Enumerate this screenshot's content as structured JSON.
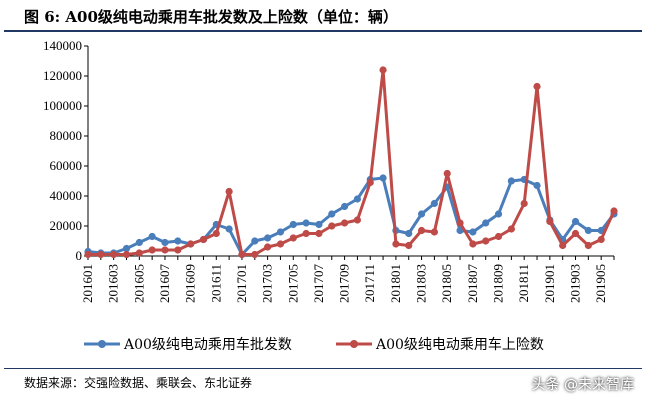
{
  "title": "图 6: A00级纯电动乘用车批发数及上险数（单位：辆）",
  "source": "数据来源：交强险数据、乘联会、东北证券",
  "watermark": "头条 @未来智库",
  "colors": {
    "wholesale": "#4a7ebb",
    "insured": "#be4b48",
    "border": "#1f3864"
  },
  "chart_data": {
    "type": "line",
    "ylim": [
      0,
      140000
    ],
    "yticks": [
      "0",
      "20000",
      "40000",
      "60000",
      "80000",
      "100000",
      "120000",
      "140000"
    ],
    "xtick_labels": [
      "201601",
      "201603",
      "201605",
      "201607",
      "201609",
      "201611",
      "201701",
      "201703",
      "201705",
      "201707",
      "201709",
      "201711",
      "201801",
      "201803",
      "201805",
      "201807",
      "201809",
      "201811",
      "201901",
      "201903",
      "201905"
    ],
    "categories": [
      "201601",
      "201602",
      "201603",
      "201604",
      "201605",
      "201606",
      "201607",
      "201608",
      "201609",
      "201610",
      "201611",
      "201612",
      "201701",
      "201702",
      "201703",
      "201704",
      "201705",
      "201706",
      "201707",
      "201708",
      "201709",
      "201710",
      "201711",
      "201712",
      "201801",
      "201802",
      "201803",
      "201804",
      "201805",
      "201806",
      "201807",
      "201808",
      "201809",
      "201810",
      "201811",
      "201812",
      "201901",
      "201902",
      "201903",
      "201904",
      "201905",
      "201906"
    ],
    "series": [
      {
        "name": "A00级纯电动乘用车批发数",
        "values": [
          3000,
          2000,
          2000,
          5000,
          9000,
          13000,
          9000,
          10000,
          8000,
          11000,
          21000,
          18000,
          1000,
          10000,
          12000,
          16000,
          21000,
          22000,
          21000,
          28000,
          33000,
          38000,
          51000,
          52000,
          17000,
          15000,
          28000,
          35000,
          46000,
          17000,
          16000,
          22000,
          28000,
          50000,
          51000,
          47000,
          24000,
          11000,
          23000,
          17000,
          17000,
          28000
        ]
      },
      {
        "name": "A00级纯电动乘用车上险数",
        "values": [
          1000,
          1000,
          1000,
          1000,
          2000,
          4000,
          4000,
          4000,
          8000,
          11000,
          15000,
          43000,
          1000,
          1000,
          6000,
          8000,
          12000,
          15000,
          15000,
          20000,
          22000,
          24000,
          49000,
          124000,
          8000,
          7000,
          17000,
          16000,
          55000,
          22000,
          8000,
          10000,
          13000,
          18000,
          35000,
          113000,
          23000,
          7000,
          15000,
          7000,
          11000,
          30000
        ]
      }
    ]
  }
}
